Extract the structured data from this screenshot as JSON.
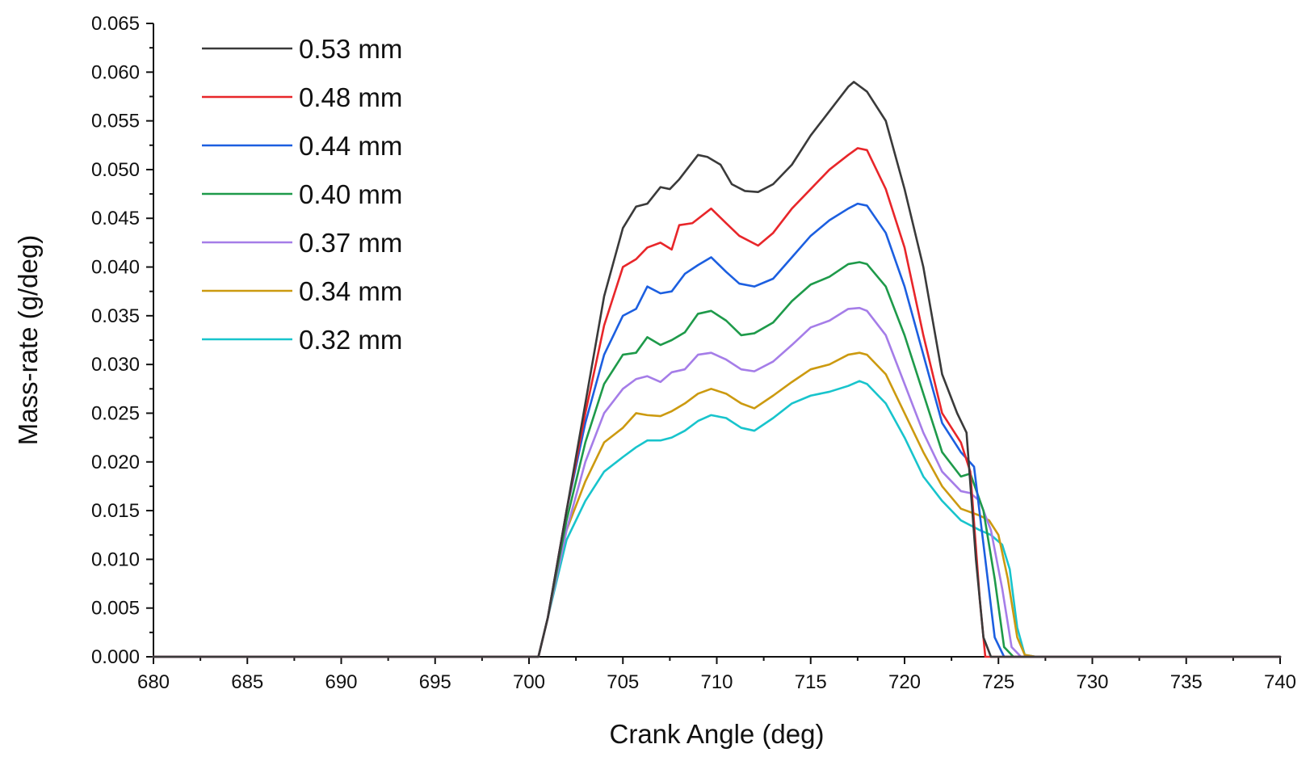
{
  "chart_data": {
    "type": "line",
    "title": "",
    "xlabel": "Crank Angle (deg)",
    "ylabel": "Mass-rate (g/deg)",
    "xlim": [
      680,
      740
    ],
    "ylim": [
      0,
      0.065
    ],
    "xticks": [
      680,
      685,
      690,
      695,
      700,
      705,
      710,
      715,
      720,
      725,
      730,
      735,
      740
    ],
    "xtick_labels": [
      "680",
      "685",
      "690",
      "695",
      "700",
      "705",
      "710",
      "715",
      "720",
      "725",
      "730",
      "735",
      "740"
    ],
    "yticks": [
      0,
      0.005,
      0.01,
      0.015,
      0.02,
      0.025,
      0.03,
      0.035,
      0.04,
      0.045,
      0.05,
      0.055,
      0.06,
      0.065
    ],
    "ytick_labels": [
      "0.000",
      "0.005",
      "0.010",
      "0.015",
      "0.020",
      "0.025",
      "0.030",
      "0.035",
      "0.040",
      "0.045",
      "0.050",
      "0.055",
      "0.060",
      "0.065"
    ],
    "grid": false,
    "legend_position": "top-left",
    "series": [
      {
        "name": "0.53 mm",
        "color": "#3a3a3a",
        "x": [
          680,
          700.5,
          701,
          702,
          703,
          704,
          705,
          705.7,
          706.3,
          707,
          707.5,
          708,
          709,
          709.5,
          710.2,
          710.8,
          711.5,
          712.2,
          713,
          714,
          715,
          716,
          717,
          717.3,
          718,
          719,
          720,
          721,
          722,
          722.8,
          723.3,
          723.8,
          724.2,
          724.6,
          740
        ],
        "y": [
          0,
          0,
          0.004,
          0.015,
          0.026,
          0.037,
          0.044,
          0.0462,
          0.0465,
          0.0482,
          0.048,
          0.049,
          0.0515,
          0.0513,
          0.0505,
          0.0485,
          0.0478,
          0.0477,
          0.0485,
          0.0505,
          0.0535,
          0.056,
          0.0585,
          0.059,
          0.058,
          0.055,
          0.048,
          0.04,
          0.029,
          0.025,
          0.023,
          0.01,
          0.002,
          0,
          0
        ]
      },
      {
        "name": "0.48 mm",
        "color": "#e8262a",
        "x": [
          680,
          700.5,
          701,
          702,
          703,
          704,
          705,
          705.7,
          706.3,
          707,
          707.6,
          708,
          708.7,
          709.7,
          710.5,
          711.2,
          712.2,
          713,
          714,
          715,
          716,
          717,
          717.5,
          718,
          719,
          720,
          721,
          722,
          723,
          723.5,
          724,
          724.3,
          740
        ],
        "y": [
          0,
          0,
          0.004,
          0.015,
          0.025,
          0.034,
          0.04,
          0.0408,
          0.042,
          0.0425,
          0.0418,
          0.0443,
          0.0445,
          0.046,
          0.0445,
          0.0432,
          0.0422,
          0.0435,
          0.046,
          0.048,
          0.05,
          0.0515,
          0.0522,
          0.052,
          0.048,
          0.042,
          0.033,
          0.025,
          0.022,
          0.019,
          0.006,
          0,
          0
        ]
      },
      {
        "name": "0.44 mm",
        "color": "#1c5fe0",
        "x": [
          680,
          700.5,
          701,
          702,
          703,
          704,
          705,
          705.7,
          706.3,
          707,
          707.6,
          708.3,
          709,
          709.7,
          710.5,
          711.2,
          712,
          713,
          714,
          715,
          716,
          717,
          717.5,
          718,
          719,
          720,
          721,
          722,
          723,
          723.7,
          724.3,
          724.8,
          725.3,
          740
        ],
        "y": [
          0,
          0,
          0.004,
          0.015,
          0.024,
          0.031,
          0.035,
          0.0357,
          0.038,
          0.0373,
          0.0375,
          0.0393,
          0.0402,
          0.041,
          0.0395,
          0.0383,
          0.038,
          0.0388,
          0.041,
          0.0432,
          0.0448,
          0.046,
          0.0465,
          0.0463,
          0.0435,
          0.038,
          0.031,
          0.024,
          0.021,
          0.0195,
          0.01,
          0.002,
          0,
          0
        ]
      },
      {
        "name": "0.40 mm",
        "color": "#1e9a4a",
        "x": [
          680,
          700.5,
          701,
          702,
          703,
          704,
          705,
          705.7,
          706.3,
          707,
          707.6,
          708.3,
          709,
          709.7,
          710.5,
          711.3,
          712,
          713,
          714,
          715,
          716,
          717,
          717.6,
          718,
          719,
          720,
          721,
          722,
          723,
          723.5,
          724.2,
          724.8,
          725.3,
          725.8,
          740
        ],
        "y": [
          0,
          0,
          0.004,
          0.014,
          0.022,
          0.028,
          0.031,
          0.0312,
          0.0328,
          0.032,
          0.0325,
          0.0333,
          0.0352,
          0.0355,
          0.0345,
          0.033,
          0.0332,
          0.0343,
          0.0365,
          0.0382,
          0.039,
          0.0403,
          0.0405,
          0.0403,
          0.038,
          0.033,
          0.027,
          0.021,
          0.0185,
          0.0188,
          0.015,
          0.008,
          0.001,
          0,
          0
        ]
      },
      {
        "name": "0.37 mm",
        "color": "#a57de8",
        "x": [
          680,
          700.5,
          701,
          702,
          703,
          704,
          705,
          705.7,
          706.3,
          707,
          707.6,
          708.3,
          709,
          709.7,
          710.5,
          711.3,
          712,
          713,
          714,
          715,
          716,
          717,
          717.6,
          718,
          719,
          720,
          721,
          722,
          723,
          723.5,
          724,
          724.6,
          725.2,
          725.7,
          726.2,
          740
        ],
        "y": [
          0,
          0,
          0.004,
          0.013,
          0.02,
          0.025,
          0.0275,
          0.0285,
          0.0288,
          0.0282,
          0.0292,
          0.0295,
          0.031,
          0.0312,
          0.0305,
          0.0295,
          0.0293,
          0.0303,
          0.032,
          0.0338,
          0.0345,
          0.0357,
          0.0358,
          0.0355,
          0.033,
          0.028,
          0.023,
          0.019,
          0.017,
          0.0168,
          0.016,
          0.013,
          0.007,
          0.001,
          0,
          0
        ]
      },
      {
        "name": "0.34 mm",
        "color": "#cc9a10",
        "x": [
          680,
          700.5,
          701,
          702,
          703,
          704,
          705,
          705.7,
          706.3,
          707,
          707.6,
          708.3,
          709,
          709.7,
          710.5,
          711.3,
          712,
          713,
          714,
          715,
          716,
          717,
          717.6,
          718,
          719,
          720,
          721,
          722,
          723,
          724,
          724.5,
          725,
          725.5,
          726,
          726.4,
          727,
          740
        ],
        "y": [
          0,
          0,
          0.004,
          0.013,
          0.018,
          0.022,
          0.0235,
          0.025,
          0.0248,
          0.0247,
          0.0252,
          0.026,
          0.027,
          0.0275,
          0.027,
          0.026,
          0.0255,
          0.0268,
          0.0282,
          0.0295,
          0.03,
          0.031,
          0.0312,
          0.031,
          0.029,
          0.025,
          0.021,
          0.0175,
          0.0152,
          0.0145,
          0.014,
          0.0125,
          0.008,
          0.002,
          0.0002,
          0,
          0
        ]
      },
      {
        "name": "0.32 mm",
        "color": "#18c4cc",
        "x": [
          680,
          700.5,
          701,
          702,
          703,
          704,
          705,
          705.7,
          706.3,
          707,
          707.6,
          708.3,
          709,
          709.7,
          710.5,
          711.3,
          712,
          713,
          714,
          715,
          716,
          717,
          717.6,
          718,
          719,
          720,
          721,
          722,
          723,
          724,
          724.6,
          725.2,
          725.6,
          726,
          726.4,
          727,
          740
        ],
        "y": [
          0,
          0,
          0.004,
          0.012,
          0.016,
          0.019,
          0.0205,
          0.0215,
          0.0222,
          0.0222,
          0.0225,
          0.0232,
          0.0242,
          0.0248,
          0.0245,
          0.0235,
          0.0232,
          0.0245,
          0.026,
          0.0268,
          0.0272,
          0.0278,
          0.0283,
          0.028,
          0.026,
          0.0225,
          0.0185,
          0.016,
          0.014,
          0.013,
          0.0125,
          0.0115,
          0.009,
          0.003,
          0.0002,
          0,
          0
        ]
      }
    ]
  }
}
